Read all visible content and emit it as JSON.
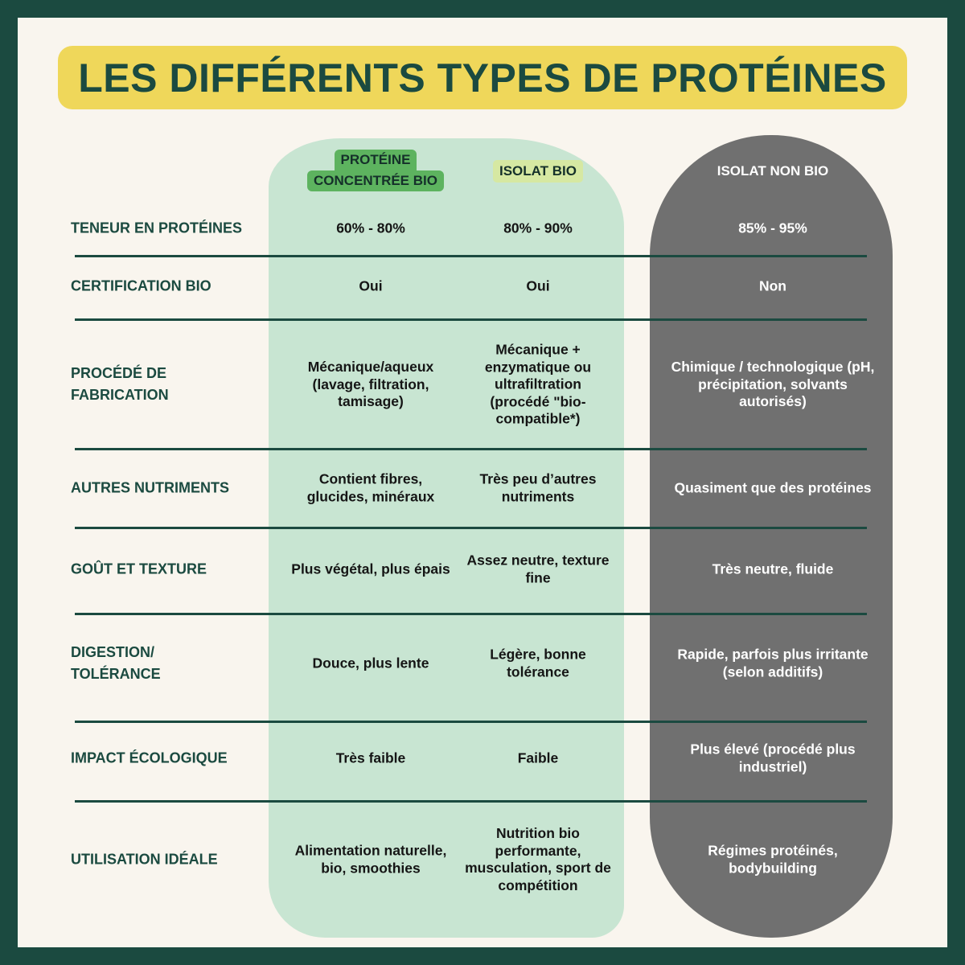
{
  "title": "LES DIFFÉRENTS TYPES DE PROTÉINES",
  "columns": [
    {
      "label_line1": "PROTÉINE",
      "label_line2": "CONCENTRÉE BIO",
      "badge_color": "#5db35f"
    },
    {
      "label": "ISOLAT BIO",
      "badge_color": "#d6e8a2"
    },
    {
      "label": "ISOLAT NON BIO"
    }
  ],
  "colors": {
    "frame": "#1b4a40",
    "title_bg": "#efd75a",
    "bio_column": "#c8e5d2",
    "non_bio_column": "#707070",
    "background": "#f9f5ee"
  },
  "rows": [
    {
      "label": "TENEUR EN PROTÉINES",
      "values": [
        "60% - 80%",
        "80% - 90%",
        "85% - 95%"
      ]
    },
    {
      "label": "CERTIFICATION BIO",
      "values": [
        "Oui",
        "Oui",
        "Non"
      ]
    },
    {
      "label": "PROCÉDÉ DE FABRICATION",
      "values": [
        "Mécanique/aqueux (lavage, filtration, tamisage)",
        "Mécanique + enzymatique ou ultrafiltration (procédé \"bio-compatible*)",
        "Chimique / technologique (pH, précipitation, solvants autorisés)"
      ]
    },
    {
      "label": "AUTRES NUTRIMENTS",
      "values": [
        "Contient fibres, glucides, minéraux",
        "Très peu d’autres nutriments",
        "Quasiment que des protéines"
      ]
    },
    {
      "label": "GOÛT ET TEXTURE",
      "values": [
        "Plus végétal, plus épais",
        "Assez neutre, texture fine",
        "Très neutre, fluide"
      ]
    },
    {
      "label": "DIGESTION/ TOLÉRANCE",
      "values": [
        "Douce, plus lente",
        "Légère, bonne tolérance",
        "Rapide, parfois plus irritante (selon additifs)"
      ]
    },
    {
      "label": "IMPACT ÉCOLOGIQUE",
      "values": [
        "Très faible",
        "Faible",
        "Plus élevé (procédé plus industriel)"
      ]
    },
    {
      "label": "UTILISATION IDÉALE",
      "values": [
        "Alimentation naturelle, bio, smoothies",
        "Nutrition bio performante, musculation, sport de compétition",
        "Régimes protéinés, bodybuilding"
      ]
    }
  ]
}
